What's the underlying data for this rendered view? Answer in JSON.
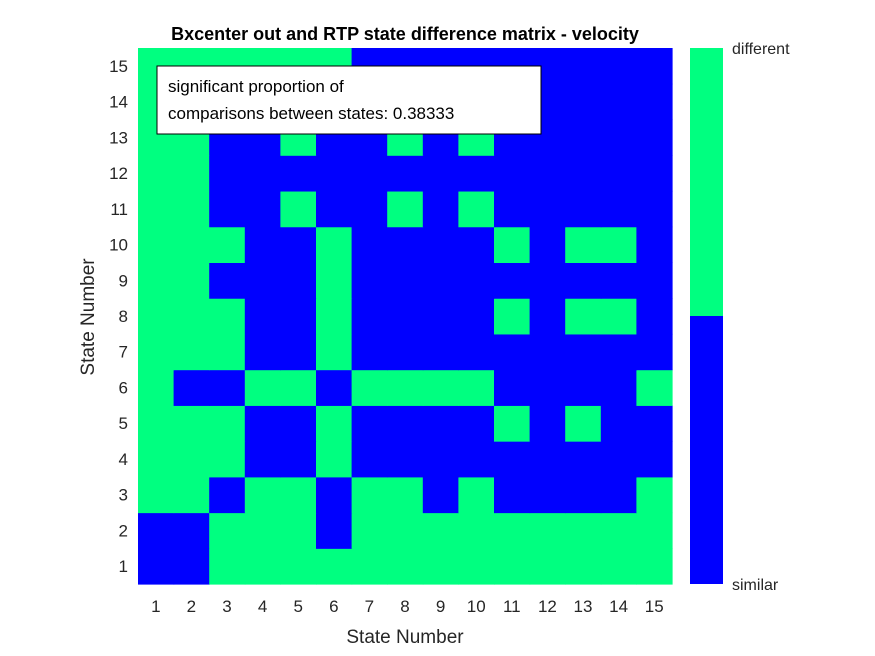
{
  "chart_data": {
    "type": "heatmap",
    "title": "Bxcenter out and RTP state difference matrix - velocity",
    "xlabel": "State Number",
    "ylabel": "State Number",
    "x": [
      1,
      2,
      3,
      4,
      5,
      6,
      7,
      8,
      9,
      10,
      11,
      12,
      13,
      14,
      15
    ],
    "y": [
      1,
      2,
      3,
      4,
      5,
      6,
      7,
      8,
      9,
      10,
      11,
      12,
      13,
      14,
      15
    ],
    "xlim": [
      0.5,
      15.5
    ],
    "ylim": [
      0.5,
      15.5
    ],
    "colormap": {
      "0": "#0000ff",
      "1": "#00ff80"
    },
    "colorbar": {
      "ticks": [
        "similar",
        "different"
      ]
    },
    "annotation": {
      "line1": "significant proportion of",
      "line2": "comparisons between states: 0.38333"
    },
    "rows_note": "rows listed from y=1 (bottom) to y=15 (top); 1=different, 0=similar",
    "values": [
      [
        0,
        0,
        1,
        1,
        1,
        1,
        1,
        1,
        1,
        1,
        1,
        1,
        1,
        1,
        1
      ],
      [
        0,
        0,
        1,
        1,
        1,
        0,
        1,
        1,
        1,
        1,
        1,
        1,
        1,
        1,
        1
      ],
      [
        1,
        1,
        0,
        1,
        1,
        0,
        1,
        1,
        0,
        1,
        0,
        0,
        0,
        0,
        1
      ],
      [
        1,
        1,
        1,
        0,
        0,
        1,
        0,
        0,
        0,
        0,
        0,
        0,
        0,
        0,
        0
      ],
      [
        1,
        1,
        1,
        0,
        0,
        1,
        0,
        0,
        0,
        0,
        1,
        0,
        1,
        0,
        0
      ],
      [
        1,
        0,
        0,
        1,
        1,
        0,
        1,
        1,
        1,
        1,
        0,
        0,
        0,
        0,
        1
      ],
      [
        1,
        1,
        1,
        0,
        0,
        1,
        0,
        0,
        0,
        0,
        0,
        0,
        0,
        0,
        0
      ],
      [
        1,
        1,
        1,
        0,
        0,
        1,
        0,
        0,
        0,
        0,
        1,
        0,
        1,
        1,
        0
      ],
      [
        1,
        1,
        0,
        0,
        0,
        1,
        0,
        0,
        0,
        0,
        0,
        0,
        0,
        0,
        0
      ],
      [
        1,
        1,
        1,
        0,
        0,
        1,
        0,
        0,
        0,
        0,
        1,
        0,
        1,
        1,
        0
      ],
      [
        1,
        1,
        0,
        0,
        1,
        0,
        0,
        1,
        0,
        1,
        0,
        0,
        0,
        0,
        0
      ],
      [
        1,
        1,
        0,
        0,
        0,
        0,
        0,
        0,
        0,
        0,
        0,
        0,
        0,
        0,
        0
      ],
      [
        1,
        1,
        0,
        0,
        1,
        0,
        0,
        1,
        0,
        1,
        0,
        0,
        0,
        0,
        0
      ],
      [
        1,
        1,
        1,
        1,
        1,
        1,
        0,
        0,
        0,
        0,
        0,
        0,
        0,
        0,
        0
      ],
      [
        1,
        1,
        1,
        1,
        1,
        1,
        0,
        0,
        0,
        0,
        0,
        0,
        0,
        0,
        0
      ]
    ]
  }
}
